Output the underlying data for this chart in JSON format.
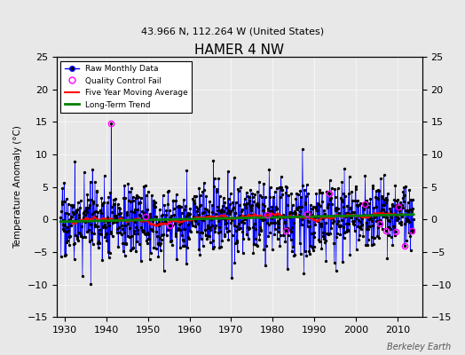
{
  "title": "HAMER 4 NW",
  "subtitle": "43.966 N, 112.264 W (United States)",
  "ylabel": "Temperature Anomaly (°C)",
  "watermark": "Berkeley Earth",
  "xlim": [
    1928,
    2016
  ],
  "ylim": [
    -15,
    25
  ],
  "yticks": [
    -15,
    -10,
    -5,
    0,
    5,
    10,
    15,
    20,
    25
  ],
  "xticks": [
    1930,
    1940,
    1950,
    1960,
    1970,
    1980,
    1990,
    2000,
    2010
  ],
  "raw_color": "blue",
  "dot_color": "black",
  "qc_color": "magenta",
  "mavg_color": "red",
  "trend_color": "green",
  "bg_color": "#e8e8e8",
  "seed": 17
}
